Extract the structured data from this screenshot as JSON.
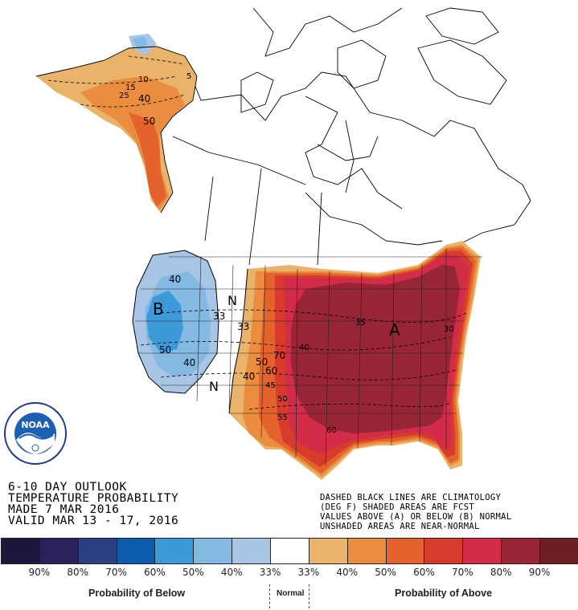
{
  "outlook": {
    "title_lines": [
      "6-10 DAY OUTLOOK",
      "TEMPERATURE PROBABILITY",
      "MADE  7 MAR 2016",
      "VALID  MAR 13 - 17, 2016"
    ]
  },
  "notes": {
    "lines": [
      "DASHED BLACK LINES ARE CLIMATOLOGY",
      "(DEG F) SHADED AREAS ARE FCST",
      "VALUES ABOVE (A) OR BELOW (B) NORMAL",
      "UNSHADED AREAS ARE NEAR-NORMAL"
    ]
  },
  "logo": {
    "text": "NOAA",
    "ring_text": "NATIONAL OCEANIC AND ATMOSPHERIC ADMINISTRATION · U.S. DEPARTMENT OF COMMERCE"
  },
  "map_labels": {
    "below": "B",
    "above": "A",
    "normal_1": "N",
    "normal_2": "N",
    "c33a": "33",
    "c33b": "33",
    "c40_west": "40",
    "c50_west": "50",
    "c40_sw": "40",
    "c50_plains": "50",
    "c40_plains": "40",
    "c70": "70",
    "c60": "60",
    "c45": "45",
    "c50_tx": "50",
    "c55": "55",
    "c60_gulf": "60",
    "ak_40": "40",
    "ak_50": "50",
    "ak_25": "25",
    "ak_15": "15",
    "ak_10": "10",
    "ak_5": "5",
    "clim_40": "40",
    "clim_35": "35",
    "clim_30": "30"
  },
  "legend": {
    "colors": [
      "#1d1740",
      "#29205c",
      "#2c3f80",
      "#0b5cab",
      "#3e99d9",
      "#84b9e2",
      "#a9c5e6",
      "#ffffff",
      "#e9b46a",
      "#ea8d3f",
      "#e4632c",
      "#d63b2b",
      "#d22c48",
      "#982535",
      "#6c1f23"
    ],
    "ticks": [
      "90%",
      "80%",
      "70%",
      "60%",
      "50%",
      "40%",
      "33%",
      "33%",
      "40%",
      "50%",
      "60%",
      "70%",
      "80%",
      "90%"
    ],
    "below_label": "Probability of Below",
    "normal_label": "Normal",
    "above_label": "Probability of Above"
  }
}
